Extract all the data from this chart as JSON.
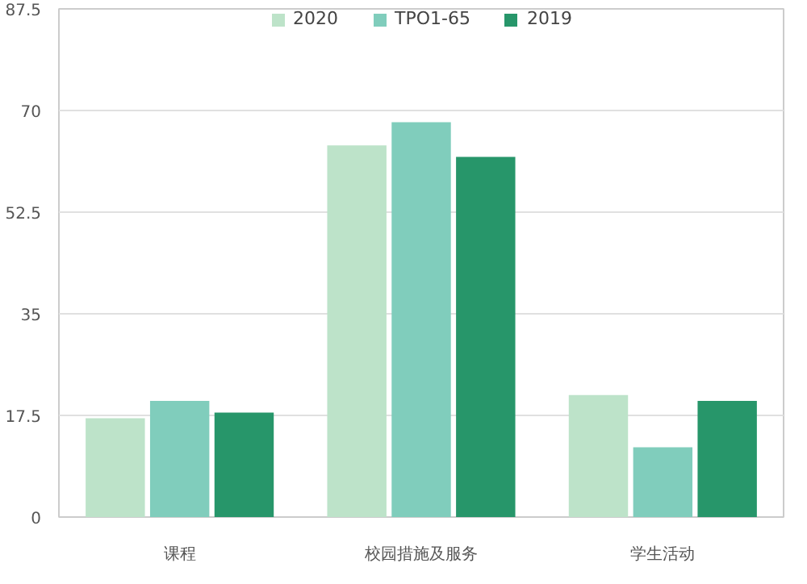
{
  "chart_data": {
    "type": "bar",
    "categories": [
      "课程",
      "校园措施及服务",
      "学生活动"
    ],
    "series": [
      {
        "name": "2020",
        "color": "#bde3c9",
        "values": [
          17,
          64,
          21
        ]
      },
      {
        "name": "TPO1-65",
        "color": "#80cdbc",
        "values": [
          20,
          68,
          12
        ]
      },
      {
        "name": "2019",
        "color": "#27966a",
        "values": [
          18,
          62,
          20
        ]
      }
    ],
    "ylim": [
      0,
      87.5
    ],
    "yticks": [
      0,
      17.5,
      35,
      52.5,
      70,
      87.5
    ],
    "grid": "y",
    "legend": "top"
  }
}
